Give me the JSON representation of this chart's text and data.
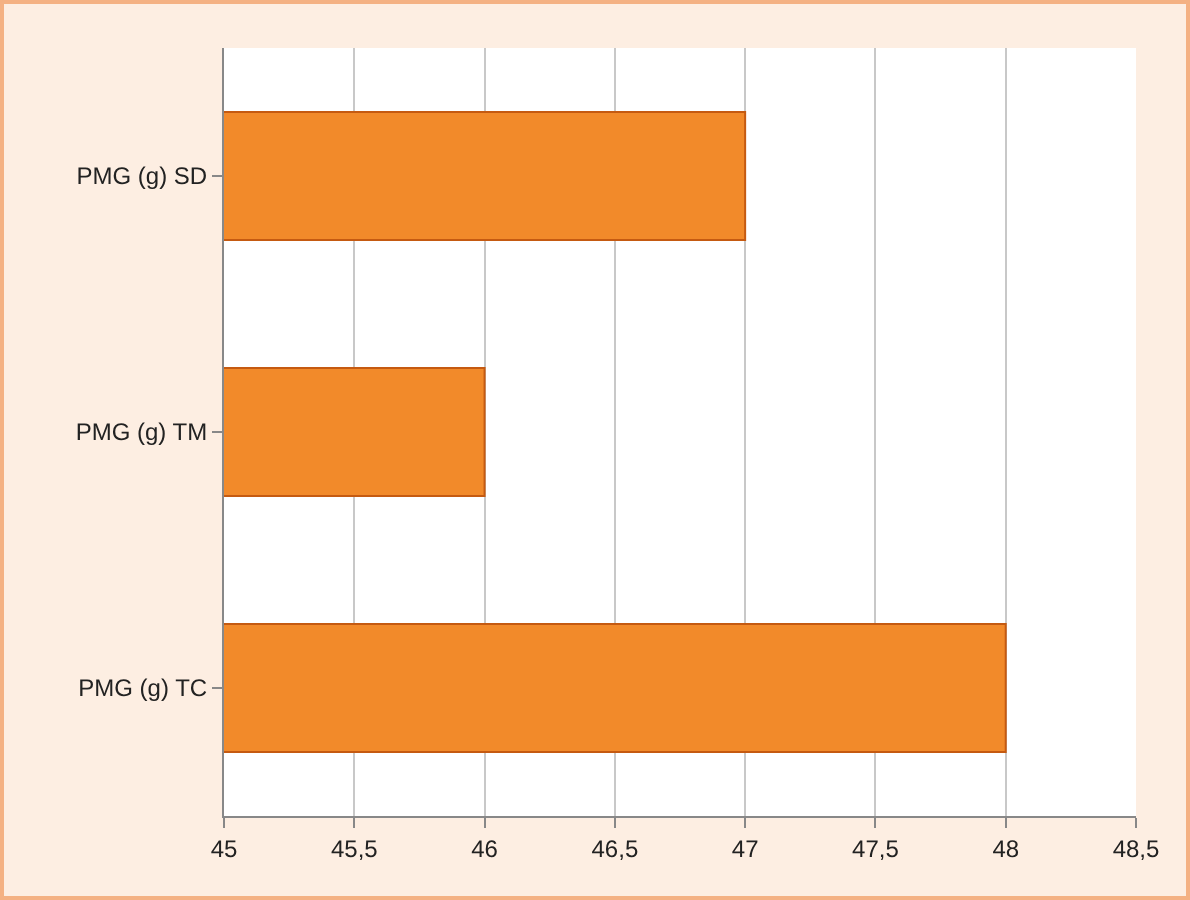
{
  "chart_data": {
    "type": "bar",
    "orientation": "horizontal",
    "categories": [
      "PMG (g) SD",
      "PMG (g) TM",
      "PMG (g) TC"
    ],
    "values": [
      47,
      46,
      48
    ],
    "color": "#f28a2a",
    "xlim": [
      45,
      48.5
    ],
    "xticks": [
      45,
      {
        "value": 45.5,
        "label": "45,5"
      },
      46,
      {
        "value": 46.5,
        "label": "46,5"
      },
      47,
      {
        "value": 47.5,
        "label": "47,5"
      },
      48,
      {
        "value": 48.5,
        "label": "48,5"
      }
    ],
    "grid": "x"
  }
}
